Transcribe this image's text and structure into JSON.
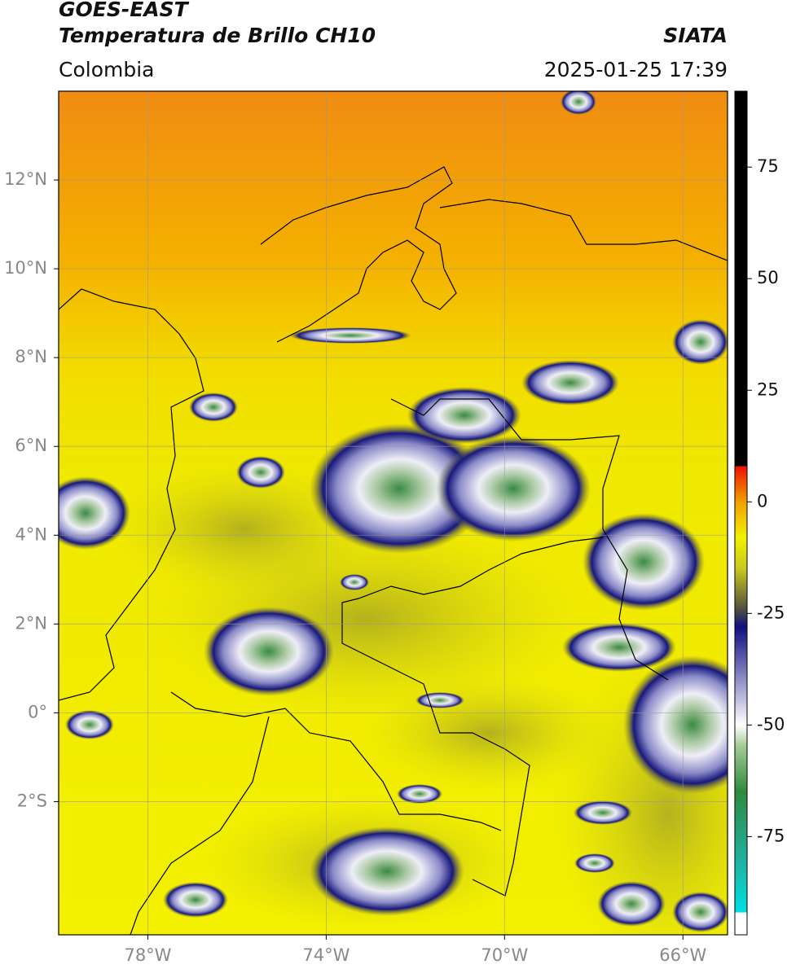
{
  "header": {
    "title": "GOES-EAST",
    "subtitle": "Temperatura de Brillo CH10",
    "source": "SIATA",
    "region": "Colombia",
    "timestamp": "2025-01-25 17:39"
  },
  "map": {
    "lonlim": [
      -80,
      -65
    ],
    "latlim": [
      -5,
      14
    ],
    "grid": true,
    "lonticks": [
      {
        "value": -78,
        "label": "78°W"
      },
      {
        "value": -74,
        "label": "74°W"
      },
      {
        "value": -70,
        "label": "70°W"
      },
      {
        "value": -66,
        "label": "66°W"
      }
    ],
    "latticks": [
      {
        "value": 12,
        "label": "12°N"
      },
      {
        "value": 10,
        "label": "10°N"
      },
      {
        "value": 8,
        "label": "8°N"
      },
      {
        "value": 6,
        "label": "6°N"
      },
      {
        "value": 4,
        "label": "4°N"
      },
      {
        "value": 2,
        "label": "2°N"
      },
      {
        "value": 0,
        "label": "0°"
      },
      {
        "value": -2,
        "label": "2°S"
      }
    ]
  },
  "colorbar": {
    "lim": [
      -97,
      92
    ],
    "ticks": [
      75,
      50,
      25,
      0,
      -25,
      -50,
      -75
    ],
    "colormap": [
      {
        "value": -97,
        "color": "#ffffff"
      },
      {
        "value": -92,
        "color": "#ffffff"
      },
      {
        "value": -92,
        "color": "#00e0e0"
      },
      {
        "value": -80,
        "color": "#20b0a0"
      },
      {
        "value": -65,
        "color": "#2e8b3e"
      },
      {
        "value": -55,
        "color": "#a0c890"
      },
      {
        "value": -50,
        "color": "#ffffff"
      },
      {
        "value": -40,
        "color": "#9090c8"
      },
      {
        "value": -28,
        "color": "#101080"
      },
      {
        "value": -24,
        "color": "#505040"
      },
      {
        "value": -15,
        "color": "#c8c820"
      },
      {
        "value": -8,
        "color": "#f5f000"
      },
      {
        "value": 0,
        "color": "#f0a000"
      },
      {
        "value": 8,
        "color": "#f01000"
      },
      {
        "value": 8,
        "color": "#000000"
      },
      {
        "value": 92,
        "color": "#000000"
      }
    ]
  }
}
